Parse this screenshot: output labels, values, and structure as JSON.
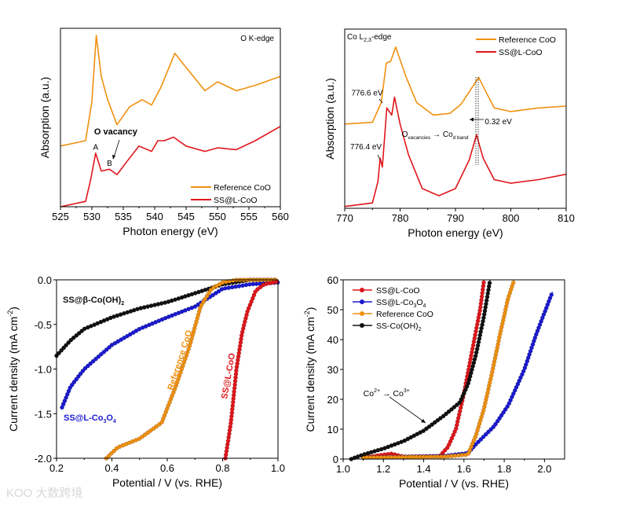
{
  "colors": {
    "orange": "#f0900f",
    "red": "#e0161b",
    "blue": "#1a1ad0",
    "black": "#111111",
    "axis": "#000000"
  },
  "watermark": "大数跨境",
  "chart_data": [
    {
      "type": "line",
      "id": "o-kedge",
      "title": "O K-edge",
      "xlabel": "Photon energy (eV)",
      "ylabel": "Absorption (a.u.)",
      "xlim": [
        525,
        560
      ],
      "ylim": [
        0,
        1
      ],
      "xticks": [
        525,
        530,
        535,
        540,
        545,
        550,
        555,
        560
      ],
      "yticks": [],
      "legend": "bottom-right",
      "markers": false,
      "series": [
        {
          "name": "Reference CoO",
          "color": "orange",
          "x": [
            525,
            529,
            530,
            530.7,
            531.5,
            532.5,
            534,
            536,
            538,
            539.5,
            541,
            543.2,
            545,
            548,
            550,
            553,
            556,
            560
          ],
          "y": [
            0.34,
            0.37,
            0.59,
            0.96,
            0.73,
            0.6,
            0.46,
            0.56,
            0.6,
            0.57,
            0.67,
            0.86,
            0.78,
            0.65,
            0.7,
            0.65,
            0.68,
            0.73
          ]
        },
        {
          "name": "SS@L-CoO",
          "color": "red",
          "x": [
            525,
            529,
            529.8,
            530.6,
            531.5,
            532.8,
            534,
            535.5,
            537.5,
            539.5,
            540.5,
            541.5,
            543,
            545,
            548,
            550,
            553,
            556,
            560
          ],
          "y": [
            0.0,
            0.03,
            0.15,
            0.3,
            0.2,
            0.21,
            0.18,
            0.25,
            0.34,
            0.31,
            0.37,
            0.37,
            0.39,
            0.34,
            0.31,
            0.33,
            0.32,
            0.37,
            0.45
          ]
        }
      ],
      "annotations": [
        {
          "text": "O vacancy",
          "x": 533.8,
          "y": 0.405,
          "bold": true
        },
        {
          "text": "A",
          "x": 530.6,
          "y": 0.32
        },
        {
          "text": "B",
          "x": 532.8,
          "y": 0.23
        }
      ]
    },
    {
      "type": "line",
      "id": "co-l-edge",
      "title": "Co L",
      "title_sub": "2,3",
      "title_suffix": "-edge",
      "xlabel": "Photon energy (eV)",
      "ylabel": "Absorption (a.u.)",
      "xlim": [
        770,
        810
      ],
      "ylim": [
        0,
        1
      ],
      "xticks": [
        770,
        780,
        790,
        800,
        810
      ],
      "yticks": [],
      "legend": "top-right",
      "markers": false,
      "series": [
        {
          "name": "Reference CoO",
          "color": "orange",
          "x": [
            770,
            775,
            776.6,
            777.5,
            778.3,
            779.2,
            781,
            783,
            786,
            789,
            791,
            794.2,
            795.5,
            797,
            800,
            805,
            810
          ],
          "y": [
            0.47,
            0.48,
            0.59,
            0.81,
            0.82,
            0.9,
            0.74,
            0.59,
            0.52,
            0.53,
            0.58,
            0.73,
            0.65,
            0.56,
            0.54,
            0.56,
            0.57
          ]
        },
        {
          "name": "SS@L-CoO",
          "color": "red",
          "x": [
            770,
            775,
            776,
            776.4,
            776.8,
            777.6,
            778.5,
            779,
            780,
            781.5,
            784,
            787,
            790,
            792.5,
            793.8,
            795,
            797,
            800,
            805,
            810
          ],
          "y": [
            0.01,
            0.03,
            0.15,
            0.28,
            0.23,
            0.56,
            0.52,
            0.62,
            0.47,
            0.3,
            0.11,
            0.07,
            0.11,
            0.27,
            0.41,
            0.28,
            0.16,
            0.14,
            0.16,
            0.19
          ]
        }
      ],
      "annotations": [
        {
          "text": "776.6 eV",
          "x": 771.2,
          "y": 0.63
        },
        {
          "text": "776.4 eV",
          "x": 771.0,
          "y": 0.33
        },
        {
          "text": "0.32 eV",
          "x": 795.3,
          "y": 0.47
        },
        {
          "text": "O",
          "sub": "vacancies",
          "text2": " → Co",
          "sub2": "d band",
          "x": 780.3,
          "y": 0.4
        }
      ]
    },
    {
      "type": "scatter",
      "id": "orr-lsv",
      "xlabel": "Potential / V (vs. RHE)",
      "ylabel": "Current density (mA cm",
      "ylabel_sup": "-2",
      "ylabel_end": ")",
      "xlim": [
        0.2,
        1.0
      ],
      "ylim": [
        -2.0,
        0.0
      ],
      "xticks": [
        0.2,
        0.4,
        0.6,
        0.8,
        1.0
      ],
      "yticks": [
        0.0,
        -0.5,
        -1.0,
        -1.5,
        -2.0
      ],
      "legend": "none",
      "markers": true,
      "series": [
        {
          "name": "SS@β-Co(OH)",
          "sub": "2",
          "color": "black",
          "x": [
            0.2,
            0.25,
            0.3,
            0.4,
            0.5,
            0.6,
            0.7,
            0.8,
            0.9,
            1.0
          ],
          "y": [
            -0.85,
            -0.68,
            -0.55,
            -0.42,
            -0.32,
            -0.25,
            -0.15,
            -0.05,
            0,
            0
          ]
        },
        {
          "name": "SS@L-Co",
          "sub": "3",
          "name2": "O",
          "sub2": "4",
          "color": "blue",
          "x": [
            0.22,
            0.25,
            0.3,
            0.4,
            0.5,
            0.6,
            0.7,
            0.75,
            0.8,
            0.9,
            1.0
          ],
          "y": [
            -1.43,
            -1.2,
            -1.0,
            -0.73,
            -0.55,
            -0.42,
            -0.3,
            -0.2,
            -0.1,
            -0.05,
            -0.03
          ]
        },
        {
          "name": "Reference CoO",
          "color": "orange",
          "x": [
            0.38,
            0.42,
            0.5,
            0.58,
            0.63,
            0.68,
            0.72,
            0.76,
            0.8,
            0.85,
            1.0
          ],
          "y": [
            -2.0,
            -1.88,
            -1.78,
            -1.6,
            -1.2,
            -0.75,
            -0.3,
            -0.1,
            -0.03,
            0,
            0
          ]
        },
        {
          "name": "SS@L-CoO",
          "color": "red",
          "x": [
            0.81,
            0.83,
            0.85,
            0.87,
            0.89,
            0.92,
            0.95,
            1.0
          ],
          "y": [
            -2.0,
            -1.6,
            -1.0,
            -0.6,
            -0.35,
            -0.12,
            -0.05,
            -0.02
          ]
        }
      ]
    },
    {
      "type": "scatter",
      "id": "oer-lsv",
      "xlabel": "Potential / V (vs. RHE)",
      "ylabel": "Current density (mA cm",
      "ylabel_sup": "-2",
      "ylabel_end": ")",
      "xlim": [
        1.0,
        2.1
      ],
      "ylim": [
        0,
        60
      ],
      "xticks": [
        1.0,
        1.2,
        1.4,
        1.6,
        1.8,
        2.0
      ],
      "yticks": [
        0,
        10,
        20,
        30,
        40,
        50,
        60
      ],
      "legend": "top-left",
      "markers": true,
      "series": [
        {
          "name": "SS@L-CoO",
          "color": "red",
          "x": [
            1.1,
            1.24,
            1.3,
            1.48,
            1.52,
            1.56,
            1.6,
            1.64,
            1.68,
            1.7
          ],
          "y": [
            0.5,
            1.8,
            0.8,
            1,
            4,
            10,
            22,
            36,
            50,
            60
          ]
        },
        {
          "name": "SS@L-Co",
          "sub": "3",
          "name2": "O",
          "sub2": "4",
          "color": "blue",
          "x": [
            1.1,
            1.5,
            1.62,
            1.66,
            1.75,
            1.82,
            1.9,
            1.96,
            2.04
          ],
          "y": [
            0.5,
            1,
            2,
            5,
            11,
            18,
            30,
            42,
            56
          ]
        },
        {
          "name": "Reference CoO",
          "color": "orange",
          "x": [
            1.1,
            1.5,
            1.62,
            1.66,
            1.7,
            1.74,
            1.78,
            1.82,
            1.85
          ],
          "y": [
            0.5,
            0.8,
            1.5,
            8,
            17,
            29,
            42,
            54,
            60
          ]
        },
        {
          "name": "SS-Co(OH)",
          "sub": "2",
          "color": "black",
          "x": [
            1.04,
            1.1,
            1.2,
            1.3,
            1.4,
            1.5,
            1.58,
            1.62,
            1.66,
            1.7,
            1.73
          ],
          "y": [
            0,
            1.5,
            3.5,
            6,
            9.5,
            14.5,
            19,
            25,
            35,
            48,
            60
          ]
        }
      ],
      "annotations": [
        {
          "text": "Co",
          "sup": "2+",
          "text2": " → Co",
          "sup2": "3+",
          "x": 1.1,
          "y": 21
        }
      ]
    }
  ]
}
